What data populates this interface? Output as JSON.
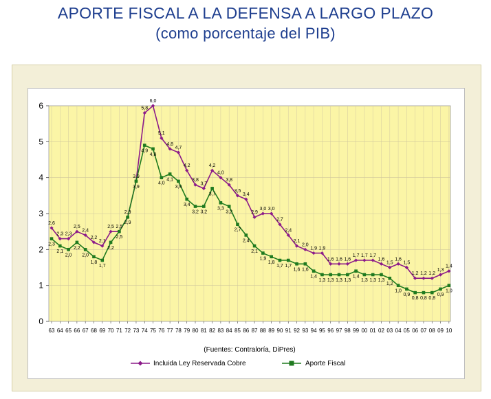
{
  "title": "APORTE FISCAL A LA DEFENSA A LARGO PLAZO",
  "subtitle": "(como porcentaje del PIB)",
  "chart_data": {
    "type": "line",
    "x": [
      "63",
      "64",
      "65",
      "66",
      "67",
      "68",
      "69",
      "70",
      "71",
      "72",
      "73",
      "74",
      "75",
      "76",
      "77",
      "78",
      "79",
      "80",
      "81",
      "82",
      "83",
      "84",
      "85",
      "86",
      "87",
      "88",
      "89",
      "90",
      "91",
      "92",
      "93",
      "94",
      "95",
      "96",
      "97",
      "98",
      "99",
      "00",
      "01",
      "02",
      "03",
      "04",
      "05",
      "06",
      "07",
      "08",
      "09",
      "10"
    ],
    "ylim": [
      0,
      6
    ],
    "yticks": [
      "0",
      "1",
      "2",
      "3",
      "4",
      "5",
      "6"
    ],
    "grid": true,
    "legend_position": "bottom",
    "source_note": "(Fuentes: Contraloría, DiPres)",
    "series": [
      {
        "name": "Incluida Ley Reservada Cobre",
        "color": "#8b1a89",
        "marker": "diamond",
        "values": [
          2.6,
          2.3,
          2.3,
          2.5,
          2.4,
          2.2,
          2.1,
          2.5,
          2.5,
          2.9,
          3.9,
          5.8,
          6.0,
          5.1,
          4.8,
          4.7,
          4.2,
          3.8,
          3.7,
          4.2,
          4.0,
          3.8,
          3.5,
          3.4,
          2.9,
          3.0,
          3.0,
          2.7,
          2.4,
          2.1,
          2.0,
          1.9,
          1.9,
          1.6,
          1.6,
          1.6,
          1.7,
          1.7,
          1.7,
          1.6,
          1.5,
          1.6,
          1.5,
          1.2,
          1.2,
          1.2,
          1.3,
          1.4
        ],
        "labels": [
          "2,6",
          "2,3",
          "2,3",
          "2,5",
          "2,4",
          "2,2",
          "2,1",
          "2,5",
          "2,5",
          "2,9",
          "3,9",
          "5,8",
          "6,0",
          "5,1",
          "4,8",
          "4,7",
          "4,2",
          "3,8",
          "3,7",
          "4,2",
          "4,0",
          "3,8",
          "3,5",
          "3,4",
          "2,9",
          "3,0",
          "3,0",
          "2,7",
          "2,4",
          "2,1",
          "2,0",
          "1,9",
          "1,9",
          "1,6",
          "1,6",
          "1,6",
          "1,7",
          "1,7",
          "1,7",
          "1,6",
          "1,5",
          "1,6",
          "1,5",
          "1,2",
          "1,2",
          "1,2",
          "1,3",
          "1,4"
        ]
      },
      {
        "name": "Aporte Fiscal",
        "color": "#1f7a1f",
        "marker": "square",
        "values": [
          2.3,
          2.1,
          2.0,
          2.2,
          2.0,
          1.8,
          1.7,
          2.2,
          2.5,
          2.9,
          3.9,
          4.9,
          4.8,
          4.0,
          4.1,
          3.9,
          3.4,
          3.2,
          3.2,
          3.7,
          3.3,
          3.2,
          2.7,
          2.4,
          2.1,
          1.9,
          1.8,
          1.7,
          1.7,
          1.6,
          1.6,
          1.4,
          1.3,
          1.3,
          1.3,
          1.3,
          1.4,
          1.3,
          1.3,
          1.3,
          1.2,
          1.0,
          0.9,
          0.8,
          0.8,
          0.8,
          0.9,
          1.0
        ],
        "labels": [
          "2,3",
          "2,1",
          "2,0",
          "2,2",
          "2,0",
          "1,8",
          "1,7",
          "2,2",
          "2,5",
          "2,9",
          "3,9",
          "4,9",
          "4,8",
          "4,0",
          "4,1",
          "3,9",
          "3,4",
          "3,2",
          "3,2",
          "3,7",
          "3,3",
          "3,2",
          "2,7",
          "2,4",
          "2,1",
          "1,9",
          "1,8",
          "1,7",
          "1,7",
          "1,6",
          "1,6",
          "1,4",
          "1,3",
          "1,3",
          "1,3",
          "1,3",
          "1,4",
          "1,3",
          "1,3",
          "1,3",
          "1,2",
          "1,0",
          "0,9",
          "0,8",
          "0,8",
          "0,8",
          "0,9",
          "1,0"
        ]
      }
    ]
  }
}
